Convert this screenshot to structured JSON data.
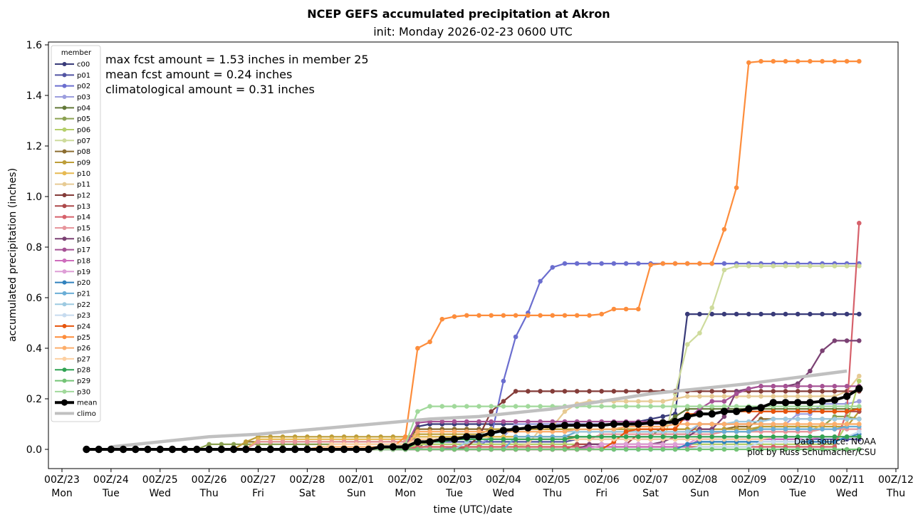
{
  "chart_data": {
    "type": "line",
    "title": "NCEP GEFS accumulated precipitation at Akron",
    "subtitle": "init: Monday 2026-02-23 0600 UTC",
    "xlabel": "time (UTC)/date",
    "ylabel": "accumulated precipitation (inches)",
    "ylim": [
      -0.07,
      1.61
    ],
    "xlim_days_since_00Z23": [
      -0.3,
      17.1
    ],
    "yticks": [
      "0.0",
      "0.2",
      "0.4",
      "0.6",
      "0.8",
      "1.0",
      "1.2",
      "1.4",
      "1.6"
    ],
    "ytick_values": [
      0,
      0.2,
      0.4,
      0.6,
      0.8,
      1.0,
      1.2,
      1.4,
      1.6
    ],
    "xticks": [
      {
        "day": 0,
        "top": "00Z/23",
        "bottom": "Mon"
      },
      {
        "day": 1,
        "top": "00Z/24",
        "bottom": "Tue"
      },
      {
        "day": 2,
        "top": "00Z/25",
        "bottom": "Wed"
      },
      {
        "day": 3,
        "top": "00Z/26",
        "bottom": "Thu"
      },
      {
        "day": 4,
        "top": "00Z/27",
        "bottom": "Fri"
      },
      {
        "day": 5,
        "top": "00Z/28",
        "bottom": "Sat"
      },
      {
        "day": 6,
        "top": "00Z/01",
        "bottom": "Sun"
      },
      {
        "day": 7,
        "top": "00Z/02",
        "bottom": "Mon"
      },
      {
        "day": 8,
        "top": "00Z/03",
        "bottom": "Tue"
      },
      {
        "day": 9,
        "top": "00Z/04",
        "bottom": "Wed"
      },
      {
        "day": 10,
        "top": "00Z/05",
        "bottom": "Thu"
      },
      {
        "day": 11,
        "top": "00Z/06",
        "bottom": "Fri"
      },
      {
        "day": 12,
        "top": "00Z/07",
        "bottom": "Sat"
      },
      {
        "day": 13,
        "top": "00Z/08",
        "bottom": "Sun"
      },
      {
        "day": 14,
        "top": "00Z/09",
        "bottom": "Mon"
      },
      {
        "day": 15,
        "top": "00Z/10",
        "bottom": "Tue"
      },
      {
        "day": 16,
        "top": "00Z/11",
        "bottom": "Wed"
      },
      {
        "day": 17,
        "top": "00Z/12",
        "bottom": "Thu"
      }
    ],
    "x_start_day": 0.5,
    "x_step_days": 0.25,
    "n_points": 64,
    "grid": false,
    "legend": {
      "title": "member",
      "placement": "top-left"
    },
    "annotations": [
      "max fcst amount = 1.53 inches in member 25",
      "mean fcst amount = 0.24 inches",
      "climatological amount = 0.31 inches"
    ],
    "credits": [
      "Data source: NOAA",
      "plot by Russ Schumacher/CSU"
    ],
    "series": [
      {
        "name": "c00",
        "color": "#393b79",
        "steps": [
          [
            26,
            0.01
          ],
          [
            27,
            0.09
          ],
          [
            28,
            0.1
          ],
          [
            45,
            0.11
          ],
          [
            46,
            0.12
          ],
          [
            47,
            0.13
          ],
          [
            48,
            0.14
          ],
          [
            49,
            0.535
          ]
        ]
      },
      {
        "name": "p01",
        "color": "#5254a3",
        "steps": [
          [
            27,
            0.02
          ],
          [
            28,
            0.03
          ],
          [
            40,
            0.04
          ]
        ]
      },
      {
        "name": "p02",
        "color": "#6b6ecf",
        "steps": [
          [
            30,
            0.01
          ],
          [
            33,
            0.05
          ],
          [
            34,
            0.27
          ],
          [
            35,
            0.445
          ],
          [
            36,
            0.54
          ],
          [
            37,
            0.665
          ],
          [
            38,
            0.72
          ],
          [
            39,
            0.735
          ]
        ]
      },
      {
        "name": "p03",
        "color": "#9c9ede",
        "steps": [
          [
            28,
            0.02
          ],
          [
            33,
            0.05
          ],
          [
            35,
            0.1
          ],
          [
            58,
            0.14
          ],
          [
            60,
            0.18
          ],
          [
            63,
            0.19
          ]
        ]
      },
      {
        "name": "p04",
        "color": "#637939",
        "steps": [
          [
            28,
            0.05
          ],
          [
            47,
            0.09
          ],
          [
            48,
            0.13
          ],
          [
            49,
            0.16
          ]
        ]
      },
      {
        "name": "p05",
        "color": "#8ca252",
        "steps": [
          [
            10,
            0.02
          ],
          [
            27,
            0.05
          ],
          [
            40,
            0.07
          ],
          [
            55,
            0.09
          ],
          [
            61,
            0.13
          ],
          [
            63,
            0.12
          ]
        ]
      },
      {
        "name": "p06",
        "color": "#b5cf6b",
        "steps": [
          [
            27,
            0.02
          ],
          [
            40,
            0.02
          ],
          [
            62,
            0.1
          ],
          [
            63,
            0.27
          ]
        ]
      },
      {
        "name": "p07",
        "color": "#cedb9c",
        "steps": [
          [
            27,
            0.01
          ],
          [
            48,
            0.22
          ],
          [
            49,
            0.415
          ],
          [
            50,
            0.46
          ],
          [
            51,
            0.56
          ],
          [
            52,
            0.71
          ],
          [
            53,
            0.725
          ]
        ]
      },
      {
        "name": "p08",
        "color": "#8c6d31",
        "steps": [
          [
            13,
            0.03
          ],
          [
            27,
            0.08
          ],
          [
            40,
            0.08
          ],
          [
            53,
            0.09
          ],
          [
            55,
            0.12
          ]
        ]
      },
      {
        "name": "p09",
        "color": "#bd9e39",
        "steps": [
          [
            13,
            0.03
          ],
          [
            14,
            0.05
          ],
          [
            27,
            0.06
          ],
          [
            33,
            0.08
          ],
          [
            41,
            0.08
          ],
          [
            55,
            0.09
          ],
          [
            63,
            0.15
          ]
        ]
      },
      {
        "name": "p10",
        "color": "#e7ba52",
        "steps": [
          [
            14,
            0.04
          ],
          [
            27,
            0.05
          ],
          [
            40,
            0.07
          ],
          [
            60,
            0.1
          ]
        ]
      },
      {
        "name": "p11",
        "color": "#e7cb94",
        "steps": [
          [
            27,
            0.01
          ],
          [
            36,
            0.02
          ],
          [
            37,
            0.08
          ],
          [
            38,
            0.09
          ],
          [
            39,
            0.15
          ],
          [
            40,
            0.18
          ],
          [
            41,
            0.19
          ],
          [
            48,
            0.2
          ],
          [
            49,
            0.21
          ],
          [
            62,
            0.23
          ],
          [
            63,
            0.29
          ]
        ]
      },
      {
        "name": "p12",
        "color": "#843c39",
        "steps": [
          [
            31,
            0.01
          ],
          [
            32,
            0.05
          ],
          [
            33,
            0.15
          ],
          [
            34,
            0.19
          ],
          [
            35,
            0.23
          ]
        ]
      },
      {
        "name": "p13",
        "color": "#ad494a",
        "steps": [
          [
            40,
            0.02
          ],
          [
            45,
            0.06
          ],
          [
            50,
            0.1
          ],
          [
            55,
            0.15
          ]
        ]
      },
      {
        "name": "p14",
        "color": "#d6616b",
        "steps": [
          [
            27,
            0.01
          ],
          [
            62,
            0.15
          ],
          [
            63,
            0.895
          ]
        ]
      },
      {
        "name": "p15",
        "color": "#e7969c",
        "steps": [
          [
            14,
            0.03
          ],
          [
            27,
            0.04
          ],
          [
            42,
            0.06
          ],
          [
            52,
            0.07
          ],
          [
            60,
            0.08
          ]
        ]
      },
      {
        "name": "p16",
        "color": "#7b4173",
        "steps": [
          [
            41,
            0.02
          ],
          [
            47,
            0.03
          ],
          [
            48,
            0.05
          ],
          [
            50,
            0.08
          ],
          [
            52,
            0.13
          ],
          [
            53,
            0.23
          ],
          [
            54,
            0.24
          ],
          [
            55,
            0.25
          ],
          [
            58,
            0.26
          ],
          [
            59,
            0.31
          ],
          [
            60,
            0.39
          ],
          [
            61,
            0.43
          ]
        ]
      },
      {
        "name": "p17",
        "color": "#a55194",
        "steps": [
          [
            26,
            0.01
          ],
          [
            27,
            0.105
          ],
          [
            28,
            0.11
          ],
          [
            45,
            0.11
          ],
          [
            46,
            0.11
          ],
          [
            49,
            0.12
          ],
          [
            50,
            0.16
          ],
          [
            51,
            0.19
          ],
          [
            53,
            0.22
          ],
          [
            54,
            0.24
          ],
          [
            55,
            0.25
          ]
        ]
      },
      {
        "name": "p18",
        "color": "#ce6dbd",
        "steps": [
          [
            41,
            0.01
          ],
          [
            50,
            0.04
          ],
          [
            60,
            0.05
          ]
        ]
      },
      {
        "name": "p19",
        "color": "#de9ed6",
        "steps": [
          [
            42,
            0.02
          ],
          [
            50,
            0.05
          ]
        ]
      },
      {
        "name": "p20",
        "color": "#3182bd",
        "steps": [
          [
            49,
            0.02
          ],
          [
            50,
            0.03
          ],
          [
            62,
            0.05
          ],
          [
            63,
            0.06
          ]
        ]
      },
      {
        "name": "p21",
        "color": "#6baed6",
        "steps": [
          [
            35,
            0.05
          ],
          [
            40,
            0.07
          ],
          [
            55,
            0.08
          ],
          [
            62,
            0.09
          ]
        ]
      },
      {
        "name": "p22",
        "color": "#9ecae1",
        "steps": [
          [
            31,
            0.03
          ],
          [
            32,
            0.06
          ],
          [
            34,
            0.07
          ],
          [
            50,
            0.1
          ],
          [
            53,
            0.11
          ],
          [
            56,
            0.12
          ]
        ]
      },
      {
        "name": "p23",
        "color": "#c6dbef",
        "steps": [
          [
            50,
            0.01
          ],
          [
            55,
            0.03
          ],
          [
            59,
            0.05
          ],
          [
            63,
            0.07
          ]
        ]
      },
      {
        "name": "p24",
        "color": "#e6550d",
        "steps": [
          [
            43,
            0.03
          ],
          [
            44,
            0.07
          ],
          [
            45,
            0.08
          ],
          [
            49,
            0.14
          ],
          [
            52,
            0.15
          ],
          [
            63,
            0.16
          ]
        ]
      },
      {
        "name": "p25",
        "color": "#fd8d3c",
        "steps": [
          [
            25,
            0.01
          ],
          [
            26,
            0.05
          ],
          [
            27,
            0.4
          ],
          [
            28,
            0.425
          ],
          [
            29,
            0.515
          ],
          [
            30,
            0.525
          ],
          [
            31,
            0.53
          ],
          [
            41,
            0.53
          ],
          [
            42,
            0.535
          ],
          [
            43,
            0.555
          ],
          [
            46,
            0.73
          ],
          [
            47,
            0.735
          ],
          [
            51,
            0.735
          ],
          [
            52,
            0.87
          ],
          [
            53,
            1.035
          ],
          [
            54,
            1.53
          ],
          [
            55,
            1.535
          ]
        ]
      },
      {
        "name": "p26",
        "color": "#fdae6b",
        "steps": [
          [
            19,
            0.01
          ],
          [
            27,
            0.07
          ],
          [
            40,
            0.08
          ],
          [
            44,
            0.09
          ],
          [
            48,
            0.1
          ]
        ]
      },
      {
        "name": "p27",
        "color": "#fdd0a2",
        "steps": [
          [
            20,
            0.02
          ],
          [
            27,
            0.04
          ],
          [
            56,
            0.05
          ]
        ]
      },
      {
        "name": "p28",
        "color": "#31a354",
        "steps": [
          [
            27,
            0.03
          ],
          [
            30,
            0.04
          ],
          [
            40,
            0.05
          ]
        ]
      },
      {
        "name": "p29",
        "color": "#74c476",
        "steps": [
          [
            0,
            0.0
          ]
        ]
      },
      {
        "name": "p30",
        "color": "#a1d99b",
        "steps": [
          [
            26,
            0.02
          ],
          [
            27,
            0.15
          ],
          [
            28,
            0.17
          ],
          [
            45,
            0.17
          ],
          [
            60,
            0.17
          ]
        ]
      },
      {
        "name": "mean",
        "color": "#000000",
        "values": [
          0,
          0,
          0,
          0,
          0,
          0,
          0,
          0,
          0,
          0,
          0,
          0,
          0,
          0,
          0,
          0,
          0,
          0,
          0,
          0,
          0,
          0,
          0,
          0,
          0.01,
          0.01,
          0.01,
          0.03,
          0.03,
          0.04,
          0.04,
          0.05,
          0.05,
          0.065,
          0.075,
          0.08,
          0.085,
          0.09,
          0.09,
          0.095,
          0.095,
          0.095,
          0.095,
          0.1,
          0.1,
          0.1,
          0.105,
          0.105,
          0.11,
          0.13,
          0.14,
          0.14,
          0.15,
          0.15,
          0.16,
          0.165,
          0.185,
          0.185,
          0.185,
          0.185,
          0.19,
          0.195,
          0.21,
          0.24
        ]
      },
      {
        "name": "climo",
        "color": "#c0c0c0",
        "climo_points": [
          [
            1.0,
            0.01
          ],
          [
            3.0,
            0.05
          ],
          [
            4.0,
            0.06
          ],
          [
            7.5,
            0.12
          ],
          [
            8.5,
            0.13
          ],
          [
            10.0,
            0.16
          ],
          [
            12.0,
            0.22
          ],
          [
            14.0,
            0.26
          ],
          [
            16.0,
            0.31
          ]
        ]
      }
    ]
  }
}
